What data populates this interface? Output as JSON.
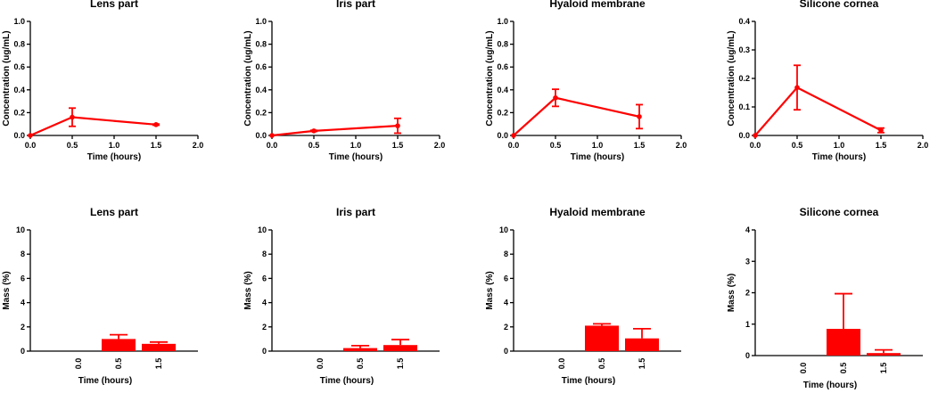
{
  "colors": {
    "series": "#ff0000",
    "axis": "#000000"
  },
  "chart_data": [
    {
      "type": "line",
      "title": "Lens part",
      "xlabel": "Time (hours)",
      "ylabel": "Concentration (ug/mL)",
      "xlim": [
        0,
        2.0
      ],
      "ylim": [
        0,
        1.0
      ],
      "xticks": [
        "0.0",
        "0.5",
        "1.0",
        "1.5",
        "2.0"
      ],
      "yticks": [
        "0.0",
        "0.2",
        "0.4",
        "0.6",
        "0.8",
        "1.0"
      ],
      "x": [
        0,
        0.5,
        1.5
      ],
      "values": [
        0,
        0.16,
        0.095
      ],
      "errors": [
        0,
        0.08,
        0.005
      ]
    },
    {
      "type": "line",
      "title": "Iris part",
      "xlabel": "Time (hours)",
      "ylabel": "Concentration (ug/mL)",
      "xlim": [
        0,
        2.0
      ],
      "ylim": [
        0,
        1.0
      ],
      "xticks": [
        "0.0",
        "0.5",
        "1.0",
        "1.5",
        "2.0"
      ],
      "yticks": [
        "0.0",
        "0.2",
        "0.4",
        "0.6",
        "0.8",
        "1.0"
      ],
      "x": [
        0,
        0.5,
        1.5
      ],
      "values": [
        0,
        0.04,
        0.085
      ],
      "errors": [
        0,
        0.005,
        0.065
      ]
    },
    {
      "type": "line",
      "title": "Hyaloid membrane",
      "xlabel": "Time (hours)",
      "ylabel": "Concentration (ug/mL)",
      "xlim": [
        0,
        2.0
      ],
      "ylim": [
        0,
        1.0
      ],
      "xticks": [
        "0.0",
        "0.5",
        "1.0",
        "1.5",
        "2.0"
      ],
      "yticks": [
        "0.0",
        "0.2",
        "0.4",
        "0.6",
        "0.8",
        "1.0"
      ],
      "x": [
        0,
        0.5,
        1.5
      ],
      "values": [
        0,
        0.33,
        0.165
      ],
      "errors": [
        0,
        0.075,
        0.105
      ]
    },
    {
      "type": "line",
      "title": "Silicone cornea",
      "xlabel": "Time (hours)",
      "ylabel": "Concentration (ug/mL)",
      "xlim": [
        0,
        2.0
      ],
      "ylim": [
        0,
        0.4
      ],
      "xticks": [
        "0.0",
        "0.5",
        "1.0",
        "1.5",
        "2.0"
      ],
      "yticks": [
        "0.0",
        "0.1",
        "0.2",
        "0.3",
        "0.4"
      ],
      "x": [
        0,
        0.5,
        1.5
      ],
      "values": [
        0,
        0.168,
        0.018
      ],
      "errors": [
        0,
        0.078,
        0.008
      ]
    },
    {
      "type": "bar",
      "title": "Lens part",
      "xlabel": "Time (hours)",
      "ylabel": "Mass (%)",
      "ylim": [
        0,
        10
      ],
      "yticks": [
        "0",
        "2",
        "4",
        "6",
        "8",
        "10"
      ],
      "categories": [
        "0.0",
        "0.5",
        "1.5"
      ],
      "values": [
        0,
        1.0,
        0.6
      ],
      "errors": [
        0,
        0.35,
        0.15
      ]
    },
    {
      "type": "bar",
      "title": "Iris part",
      "xlabel": "Time (hours)",
      "ylabel": "Mass (%)",
      "ylim": [
        0,
        10
      ],
      "yticks": [
        "0",
        "2",
        "4",
        "6",
        "8",
        "10"
      ],
      "categories": [
        "0.0",
        "0.5",
        "1.5"
      ],
      "values": [
        0,
        0.25,
        0.5
      ],
      "errors": [
        0,
        0.2,
        0.45
      ]
    },
    {
      "type": "bar",
      "title": "Hyaloid membrane",
      "xlabel": "Time (hours)",
      "ylabel": "Mass (%)",
      "ylim": [
        0,
        10
      ],
      "yticks": [
        "0",
        "2",
        "4",
        "6",
        "8",
        "10"
      ],
      "categories": [
        "0.0",
        "0.5",
        "1.5"
      ],
      "values": [
        0,
        2.1,
        1.05
      ],
      "errors": [
        0,
        0.15,
        0.8
      ]
    },
    {
      "type": "bar",
      "title": "Silicone cornea",
      "xlabel": "Time (hours)",
      "ylabel": "Mass (%)",
      "ylim": [
        0,
        4
      ],
      "yticks": [
        "0",
        "1",
        "2",
        "3",
        "4"
      ],
      "categories": [
        "0.0",
        "0.5",
        "1.5"
      ],
      "values": [
        0,
        0.85,
        0.08
      ],
      "errors": [
        0,
        1.12,
        0.1
      ]
    }
  ]
}
